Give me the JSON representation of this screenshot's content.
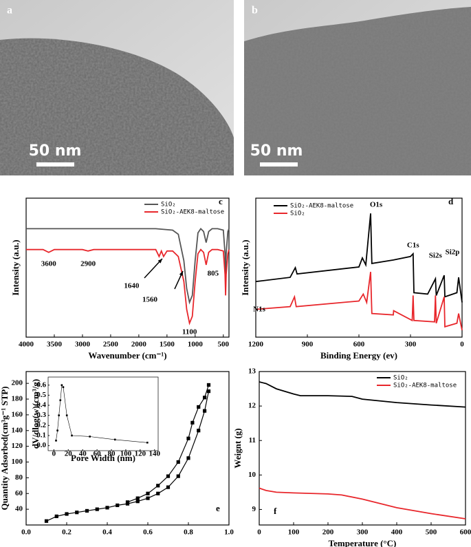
{
  "images": [
    {
      "panel_label": "a",
      "scale_bar": "50 nm"
    },
    {
      "panel_label": "b",
      "scale_bar": "50 nm"
    }
  ],
  "chart_data": [
    {
      "type": "line",
      "panel_label": "c",
      "x_label": "Wavenumber (cm⁻¹)",
      "y_label": "Intensity (a.u.)",
      "xlim": [
        4000,
        400
      ],
      "xticks": [
        4000,
        3500,
        3000,
        2500,
        2000,
        1500,
        1000,
        500
      ],
      "ylim": [
        0,
        100
      ],
      "legend": "upper right",
      "series": [
        {
          "name": "SiO₂",
          "color": "#555555",
          "x": [
            4000,
            3600,
            3000,
            2000,
            1700,
            1400,
            1300,
            1200,
            1150,
            1100,
            1050,
            1000,
            950,
            900,
            850,
            805,
            760,
            700,
            600,
            500,
            470,
            460,
            450,
            420,
            400
          ],
          "values": [
            78,
            78,
            78,
            78,
            78,
            77,
            74,
            55,
            35,
            25,
            30,
            55,
            75,
            78,
            76,
            68,
            76,
            78,
            78,
            77,
            60,
            45,
            60,
            76,
            78
          ]
        },
        {
          "name": "SiO₂-AEK8-maltose",
          "color": "#e8262b",
          "x": [
            4000,
            3700,
            3600,
            3500,
            3000,
            2900,
            2800,
            2000,
            1700,
            1640,
            1600,
            1560,
            1500,
            1400,
            1300,
            1200,
            1150,
            1100,
            1050,
            1000,
            950,
            900,
            850,
            805,
            760,
            700,
            600,
            500,
            470,
            460,
            450,
            420,
            400
          ],
          "values": [
            63,
            63,
            61,
            63,
            63,
            62,
            63,
            63,
            63,
            58,
            62,
            58,
            62,
            62,
            58,
            40,
            20,
            10,
            15,
            40,
            60,
            63,
            61,
            52,
            61,
            63,
            63,
            62,
            45,
            30,
            45,
            60,
            63
          ]
        }
      ],
      "annotations": [
        3600,
        2900,
        1640,
        1560,
        1100,
        805
      ]
    },
    {
      "type": "line",
      "panel_label": "d",
      "x_label": "Binding Energy (ev)",
      "y_label": "Intensity (a.u.)",
      "xlim": [
        1200,
        0
      ],
      "xticks": [
        1200,
        900,
        600,
        300,
        0
      ],
      "ylim": [
        0,
        100
      ],
      "legend": "upper left",
      "series": [
        {
          "name": "SiO₂-AEK8-maltose",
          "color": "#000000",
          "x": [
            1200,
            1000,
            970,
            960,
            600,
            580,
            560,
            532,
            525,
            400,
            300,
            285,
            280,
            200,
            155,
            150,
            104,
            100,
            30,
            20,
            0
          ],
          "values": [
            40,
            43,
            50,
            45.5,
            50.5,
            57,
            52,
            89,
            53,
            55.5,
            58,
            60,
            32,
            31,
            42,
            30,
            44.5,
            29,
            32,
            43,
            25
          ]
        },
        {
          "name": "SiO₂",
          "color": "#e8262b",
          "x": [
            1200,
            1000,
            975,
            965,
            600,
            575,
            555,
            532,
            525,
            400,
            398,
            290,
            285,
            280,
            160,
            155,
            150,
            104,
            100,
            30,
            20,
            0
          ],
          "values": [
            20,
            22,
            29,
            22,
            26,
            31,
            25,
            47,
            17,
            16,
            19,
            12,
            30,
            12,
            11,
            30,
            10,
            29,
            7.5,
            10,
            17,
            5
          ]
        }
      ],
      "annotations": [
        "O1s",
        "C1s",
        "N1s",
        "Si2s",
        "Si2p"
      ]
    },
    {
      "type": "scatter",
      "panel_label": "e",
      "y_label": "Quantity Adsorbed(cm³g⁻¹ STP)",
      "xlim": [
        0,
        1
      ],
      "xticks": [
        {
          "value": 0,
          "label": "0.0"
        },
        0.2,
        0.4,
        0.6,
        0.8,
        {
          "value": 1,
          "label": "1.0"
        }
      ],
      "ylim": [
        20,
        215
      ],
      "yticks": [
        40,
        60,
        80,
        100,
        120,
        140,
        160,
        180,
        200
      ],
      "series": [
        {
          "color": "#000000",
          "x": [
            0.1,
            0.15,
            0.2,
            0.25,
            0.3,
            0.35,
            0.4,
            0.45,
            0.5,
            0.55,
            0.6,
            0.65,
            0.7,
            0.75,
            0.8,
            0.85,
            0.88,
            0.9
          ],
          "values": [
            25,
            31,
            34,
            36,
            38,
            40,
            42,
            45,
            47,
            50,
            54,
            60,
            68,
            82,
            105,
            140,
            165,
            190
          ]
        },
        {
          "color": "#000000",
          "x": [
            0.9,
            0.88,
            0.85,
            0.82,
            0.8,
            0.75,
            0.7,
            0.65,
            0.6,
            0.55,
            0.5
          ],
          "values": [
            198,
            182,
            170,
            150,
            130,
            100,
            82,
            70,
            60,
            54,
            49
          ]
        }
      ]
    },
    {
      "type": "scatter",
      "x_label": "Pore Width (nm)",
      "y_label": "dV/dlog(w)(cm³/g)",
      "xlim": [
        -8,
        145
      ],
      "xticks": [
        0,
        20,
        40,
        60,
        80,
        100,
        120,
        140
      ],
      "ylim": [
        -0.05,
        0.68
      ],
      "yticks": [
        {
          "value": 0,
          "label": "0.0"
        },
        0.1,
        0.2,
        0.3,
        0.4,
        0.5,
        0.6
      ],
      "series": [
        {
          "color": "#000000",
          "x": [
            3,
            5,
            7,
            9,
            11,
            13,
            18,
            25,
            50,
            85,
            130
          ],
          "values": [
            0.05,
            0.15,
            0.3,
            0.45,
            0.6,
            0.58,
            0.3,
            0.1,
            0.09,
            0.06,
            0.03
          ]
        }
      ]
    },
    {
      "type": "line",
      "panel_label": "f",
      "x_label": "Temperature (°C)",
      "y_label": "Weignt (g)",
      "xlim": [
        0,
        600
      ],
      "xticks": [
        0,
        100,
        200,
        300,
        400,
        500,
        600
      ],
      "ylim": [
        8.55,
        13
      ],
      "yticks": [
        9,
        10,
        11,
        12,
        13
      ],
      "legend": "upper right",
      "series": [
        {
          "name": "SiO₂",
          "color": "#000000",
          "x": [
            0,
            20,
            50,
            100,
            120,
            200,
            270,
            300,
            400,
            500,
            600
          ],
          "values": [
            12.7,
            12.65,
            12.5,
            12.35,
            12.3,
            12.3,
            12.28,
            12.2,
            12.1,
            12.03,
            11.97
          ]
        },
        {
          "name": "SiO₂-AEK8-maltose",
          "color": "#e8262b",
          "x": [
            0,
            20,
            50,
            100,
            200,
            240,
            300,
            400,
            500,
            600
          ],
          "values": [
            9.62,
            9.55,
            9.5,
            9.48,
            9.45,
            9.42,
            9.3,
            9.05,
            8.88,
            8.73
          ]
        }
      ]
    }
  ]
}
